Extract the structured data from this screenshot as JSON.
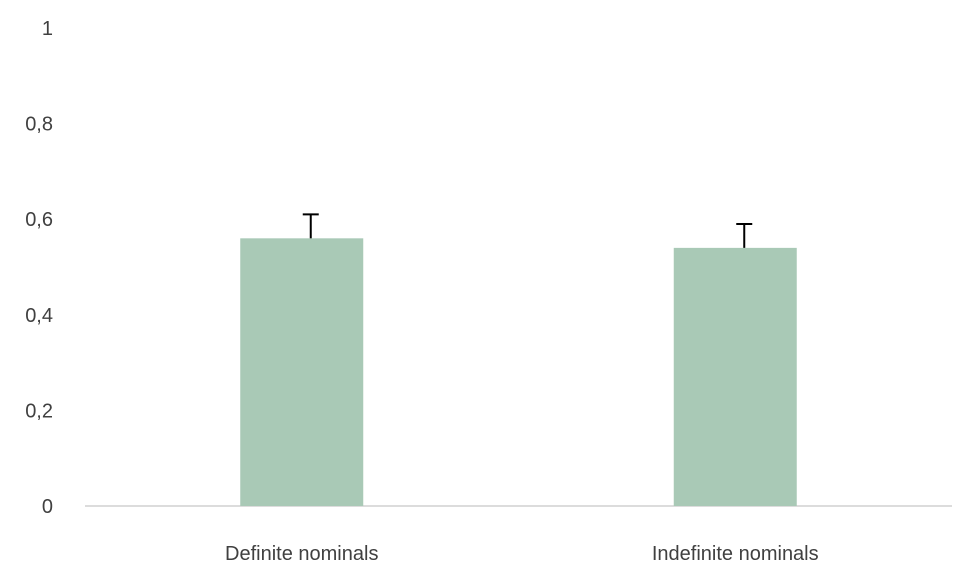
{
  "chart_data": {
    "type": "bar",
    "categories": [
      "Definite nominals",
      "Indefinite nominals"
    ],
    "series": [
      {
        "values": [
          0.56,
          0.54
        ],
        "error_plus": [
          0.05,
          0.05
        ]
      }
    ],
    "ylim": [
      0,
      1
    ],
    "y_ticks": [
      0,
      0.2,
      0.4,
      0.6,
      0.8,
      1
    ],
    "y_tick_labels": [
      "0",
      "0,2",
      "0,4",
      "0,6",
      "0,8",
      "1"
    ],
    "grid": false,
    "bar_color": "#a9c9b6",
    "error_bar_color": "#000000",
    "axis_color": "#d0d0d0",
    "label_color": "#404040"
  }
}
